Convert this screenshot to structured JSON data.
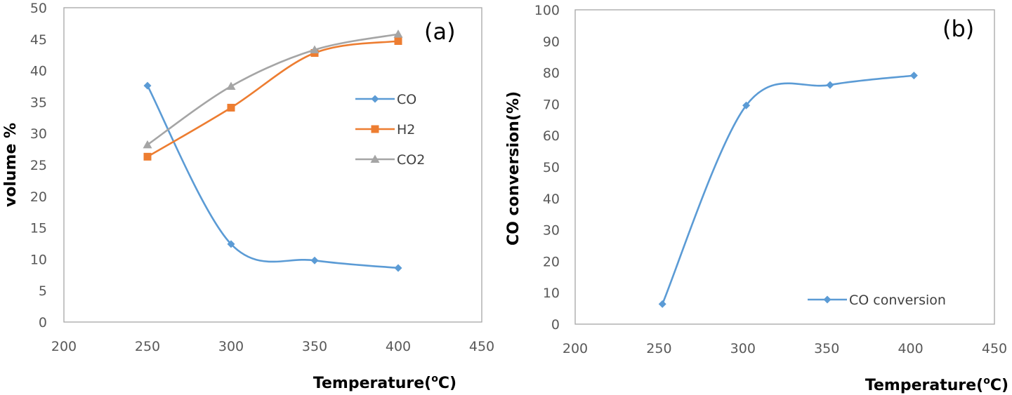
{
  "chart_data": [
    {
      "type": "scatter",
      "panel_label": "(a)",
      "xlabel": {
        "main": "Temperature(",
        "sup": "o",
        "tail": "C)"
      },
      "ylabel": "volume  %",
      "xlim": [
        200,
        450
      ],
      "ylim": [
        0,
        50
      ],
      "xticks": [
        200,
        250,
        300,
        350,
        400,
        450
      ],
      "yticks": [
        0,
        5,
        10,
        15,
        20,
        25,
        30,
        35,
        40,
        45,
        50
      ],
      "grid": false,
      "legend_position": "right",
      "series": [
        {
          "name": "CO",
          "color": "#5B9BD5",
          "marker": "diamond",
          "x": [
            250,
            300,
            350,
            400
          ],
          "y": [
            37.6,
            12.4,
            9.8,
            8.6
          ]
        },
        {
          "name": "H2",
          "color": "#ED7D31",
          "marker": "square",
          "x": [
            250,
            300,
            350,
            400
          ],
          "y": [
            26.3,
            34.1,
            42.8,
            44.7
          ]
        },
        {
          "name": "CO2",
          "color": "#A5A5A5",
          "marker": "triangle",
          "x": [
            250,
            300,
            350,
            400
          ],
          "y": [
            28.2,
            37.5,
            43.3,
            45.8
          ]
        }
      ]
    },
    {
      "type": "scatter",
      "panel_label": "(b)",
      "xlabel": {
        "main": "Temperature(",
        "sup": "o",
        "tail": "C)"
      },
      "ylabel": "CO conversion(%)",
      "xlim": [
        200,
        450
      ],
      "ylim": [
        0,
        100
      ],
      "xticks": [
        200,
        250,
        300,
        350,
        400,
        450
      ],
      "yticks": [
        0,
        10,
        20,
        30,
        40,
        50,
        60,
        70,
        80,
        90,
        100
      ],
      "grid": false,
      "legend_position": "bottom-right",
      "series": [
        {
          "name": "CO conversion",
          "color": "#5B9BD5",
          "marker": "diamond",
          "x": [
            252,
            302,
            352,
            402
          ],
          "y": [
            6.4,
            69.6,
            76.1,
            79.1
          ]
        }
      ]
    }
  ]
}
